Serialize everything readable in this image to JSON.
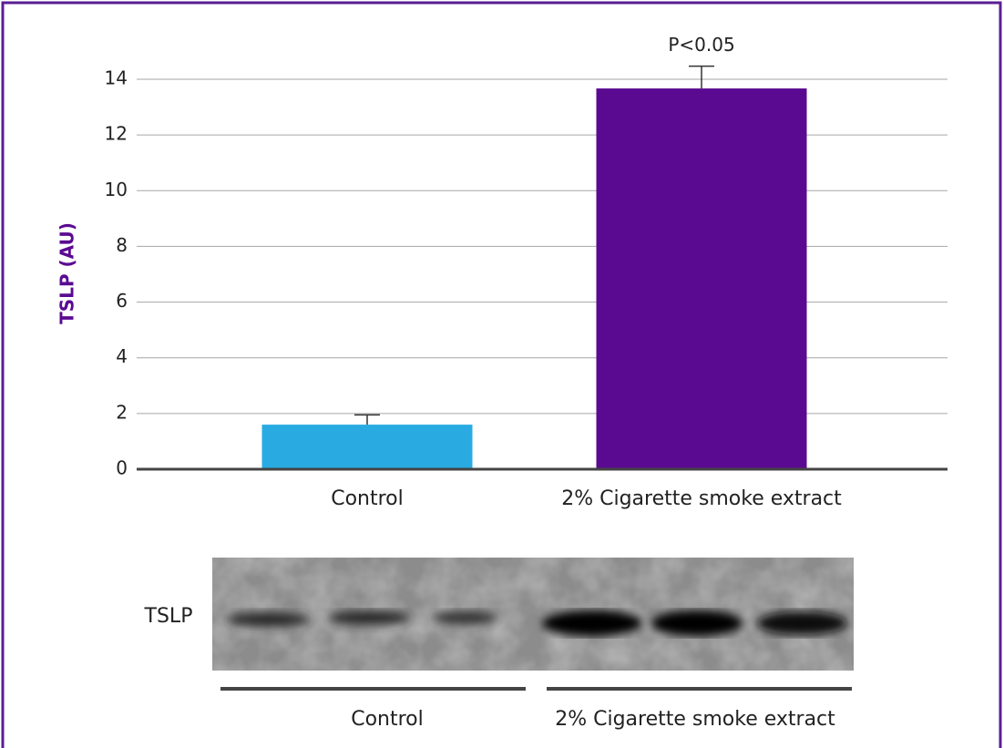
{
  "chart_data": {
    "type": "bar",
    "ylabel": "TSLP (AU)",
    "categories": [
      "Control",
      "2% Cigarette smoke extract"
    ],
    "values": [
      1.6,
      13.67
    ],
    "errors": [
      0.35,
      0.8
    ],
    "colors": [
      "#29abe2",
      "#5a0a91"
    ],
    "ylim": [
      0,
      14
    ],
    "yticks": [
      0,
      2,
      4,
      6,
      8,
      10,
      12,
      14
    ],
    "grid": true,
    "annotation": "P<0.05"
  },
  "blot": {
    "label": "TSLP",
    "groups": [
      "Control",
      "2% Cigarette smoke extract"
    ]
  }
}
